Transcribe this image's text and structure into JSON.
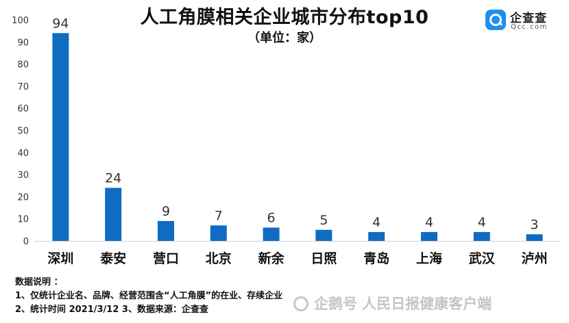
{
  "chart_data": {
    "type": "bar",
    "title": "人工角膜相关企业城市分布top10",
    "subtitle": "（单位：家）",
    "categories": [
      "深圳",
      "泰安",
      "营口",
      "北京",
      "新余",
      "日照",
      "青岛",
      "上海",
      "武汉",
      "泸州"
    ],
    "values": [
      94,
      24,
      9,
      7,
      6,
      5,
      4,
      4,
      4,
      3
    ],
    "ylim": [
      0,
      100
    ],
    "yticks": [
      0,
      10,
      20,
      30,
      40,
      50,
      60,
      70,
      80,
      90,
      100
    ],
    "grid": false,
    "colors": {
      "bar": "#0f6cc2"
    }
  },
  "logo": {
    "name": "企查查",
    "domain": "Qcc.com",
    "icon": "qcc-search-logo-icon"
  },
  "notes": {
    "heading": "数据说明 ：",
    "line1": "1、仅统计企业名、品牌、经营范围含“人工角膜”的在业、存续企业",
    "line2": "2、统计时间  2021/3/12      3、数据来源：企查查"
  },
  "watermark": {
    "text": "企鹅号 人民日报健康客户端",
    "icon": "penguin-icon"
  }
}
